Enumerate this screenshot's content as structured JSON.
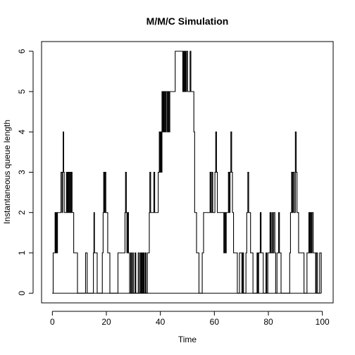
{
  "chart_data": {
    "type": "line",
    "step": true,
    "title": "M/M/C Simulation",
    "xlabel": "Time",
    "ylabel": "Instantaneous queue length",
    "xlim": [
      -4,
      104
    ],
    "ylim": [
      -0.24,
      6.24
    ],
    "xticks": [
      0,
      20,
      40,
      60,
      80,
      100
    ],
    "yticks": [
      0,
      1,
      2,
      3,
      4,
      5,
      6
    ],
    "grid": false,
    "frame": true,
    "series": [
      {
        "color": "#000000",
        "points": [
          [
            0.0,
            0
          ],
          [
            0.3,
            1
          ],
          [
            1.0,
            2
          ],
          [
            1.2,
            1
          ],
          [
            1.4,
            2
          ],
          [
            1.7,
            1
          ],
          [
            1.9,
            2
          ],
          [
            3.2,
            3
          ],
          [
            3.6,
            2
          ],
          [
            3.8,
            3
          ],
          [
            4.0,
            4
          ],
          [
            4.2,
            3
          ],
          [
            4.4,
            2
          ],
          [
            5.2,
            3
          ],
          [
            5.5,
            2
          ],
          [
            5.8,
            3
          ],
          [
            6.1,
            2
          ],
          [
            6.4,
            3
          ],
          [
            6.7,
            2
          ],
          [
            7.0,
            3
          ],
          [
            7.3,
            2
          ],
          [
            7.9,
            1
          ],
          [
            9.3,
            0
          ],
          [
            12.3,
            1
          ],
          [
            12.9,
            0
          ],
          [
            15.2,
            1
          ],
          [
            15.4,
            2
          ],
          [
            15.6,
            1
          ],
          [
            16.6,
            0
          ],
          [
            18.5,
            1
          ],
          [
            18.8,
            2
          ],
          [
            19.0,
            3
          ],
          [
            19.3,
            2
          ],
          [
            19.5,
            3
          ],
          [
            19.8,
            2
          ],
          [
            20.5,
            1
          ],
          [
            21.3,
            0
          ],
          [
            24.3,
            1
          ],
          [
            26.9,
            2
          ],
          [
            27.1,
            3
          ],
          [
            27.4,
            2
          ],
          [
            27.6,
            1
          ],
          [
            27.9,
            2
          ],
          [
            28.2,
            1
          ],
          [
            28.6,
            0
          ],
          [
            29.0,
            1
          ],
          [
            29.3,
            0
          ],
          [
            29.7,
            1
          ],
          [
            30.0,
            0
          ],
          [
            30.6,
            1
          ],
          [
            30.9,
            0
          ],
          [
            31.8,
            1
          ],
          [
            32.2,
            0
          ],
          [
            32.6,
            1
          ],
          [
            32.9,
            0
          ],
          [
            33.1,
            1
          ],
          [
            33.4,
            0
          ],
          [
            33.7,
            1
          ],
          [
            34.0,
            0
          ],
          [
            34.4,
            1
          ],
          [
            34.7,
            0
          ],
          [
            35.2,
            1
          ],
          [
            35.9,
            2
          ],
          [
            36.1,
            3
          ],
          [
            36.4,
            2
          ],
          [
            37.6,
            3
          ],
          [
            37.9,
            2
          ],
          [
            39.2,
            3
          ],
          [
            39.6,
            4
          ],
          [
            39.9,
            3
          ],
          [
            40.1,
            4
          ],
          [
            40.4,
            3
          ],
          [
            40.6,
            5
          ],
          [
            40.9,
            4
          ],
          [
            41.1,
            5
          ],
          [
            41.3,
            4
          ],
          [
            41.6,
            5
          ],
          [
            41.9,
            4
          ],
          [
            42.2,
            5
          ],
          [
            42.6,
            4
          ],
          [
            42.9,
            5
          ],
          [
            43.2,
            4
          ],
          [
            43.5,
            5
          ],
          [
            45.5,
            6
          ],
          [
            48.3,
            5
          ],
          [
            48.6,
            6
          ],
          [
            48.8,
            5
          ],
          [
            49.1,
            6
          ],
          [
            49.4,
            5
          ],
          [
            49.7,
            6
          ],
          [
            50.1,
            5
          ],
          [
            51.0,
            6
          ],
          [
            51.3,
            5
          ],
          [
            52.4,
            4
          ],
          [
            52.7,
            2
          ],
          [
            53.4,
            1
          ],
          [
            54.3,
            0
          ],
          [
            55.5,
            1
          ],
          [
            56.0,
            2
          ],
          [
            58.4,
            3
          ],
          [
            58.7,
            2
          ],
          [
            59.1,
            3
          ],
          [
            59.4,
            2
          ],
          [
            60.2,
            3
          ],
          [
            60.5,
            4
          ],
          [
            60.8,
            3
          ],
          [
            61.1,
            2
          ],
          [
            63.5,
            1
          ],
          [
            63.8,
            2
          ],
          [
            64.1,
            1
          ],
          [
            64.4,
            2
          ],
          [
            65.2,
            3
          ],
          [
            65.5,
            2
          ],
          [
            65.8,
            3
          ],
          [
            66.1,
            4
          ],
          [
            66.4,
            3
          ],
          [
            66.7,
            2
          ],
          [
            67.1,
            1
          ],
          [
            68.5,
            0
          ],
          [
            69.3,
            1
          ],
          [
            70.2,
            0
          ],
          [
            70.5,
            1
          ],
          [
            70.8,
            0
          ],
          [
            71.7,
            1
          ],
          [
            72.0,
            2
          ],
          [
            72.4,
            3
          ],
          [
            72.7,
            2
          ],
          [
            73.4,
            1
          ],
          [
            74.3,
            0
          ],
          [
            75.8,
            1
          ],
          [
            76.1,
            0
          ],
          [
            76.4,
            1
          ],
          [
            77.0,
            2
          ],
          [
            77.3,
            1
          ],
          [
            78.1,
            0
          ],
          [
            79.1,
            1
          ],
          [
            79.4,
            0
          ],
          [
            79.8,
            1
          ],
          [
            80.6,
            2
          ],
          [
            80.9,
            1
          ],
          [
            81.3,
            2
          ],
          [
            81.6,
            1
          ],
          [
            82.0,
            2
          ],
          [
            82.4,
            1
          ],
          [
            82.7,
            0
          ],
          [
            83.2,
            1
          ],
          [
            83.8,
            2
          ],
          [
            84.1,
            1
          ],
          [
            84.7,
            0
          ],
          [
            87.9,
            1
          ],
          [
            88.2,
            2
          ],
          [
            88.6,
            3
          ],
          [
            88.9,
            2
          ],
          [
            89.2,
            3
          ],
          [
            89.6,
            2
          ],
          [
            90.0,
            4
          ],
          [
            90.3,
            3
          ],
          [
            90.6,
            2
          ],
          [
            91.2,
            1
          ],
          [
            93.2,
            0
          ],
          [
            94.3,
            1
          ],
          [
            95.0,
            2
          ],
          [
            95.3,
            1
          ],
          [
            95.6,
            2
          ],
          [
            95.9,
            1
          ],
          [
            96.2,
            2
          ],
          [
            96.6,
            1
          ],
          [
            97.5,
            0
          ],
          [
            97.8,
            1
          ],
          [
            98.2,
            0
          ],
          [
            99.0,
            1
          ],
          [
            99.6,
            0
          ]
        ]
      }
    ]
  }
}
